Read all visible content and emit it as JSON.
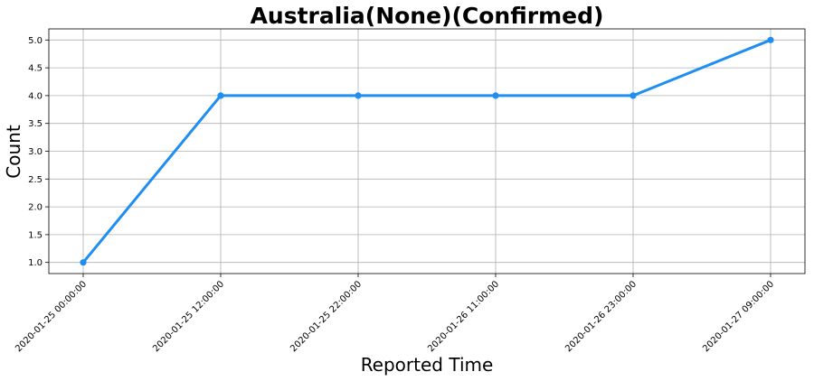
{
  "chart_data": {
    "type": "line",
    "title": "Australia(None)(Confirmed)",
    "xlabel": "Reported Time",
    "ylabel": "Count",
    "categories": [
      "2020-01-25 00:00:00",
      "2020-01-25 12:00:00",
      "2020-01-25 22:00:00",
      "2020-01-26 11:00:00",
      "2020-01-26 23:00:00",
      "2020-01-27 09:00:00"
    ],
    "series": [
      {
        "values": [
          1,
          4,
          4,
          4,
          4,
          5
        ],
        "color": "#1f8ef1"
      }
    ],
    "ylim": [
      0.8,
      5.2
    ],
    "yticks": [
      "1.0",
      "1.5",
      "2.0",
      "2.5",
      "3.0",
      "3.5",
      "4.0",
      "4.5",
      "5.0"
    ],
    "grid": true
  }
}
